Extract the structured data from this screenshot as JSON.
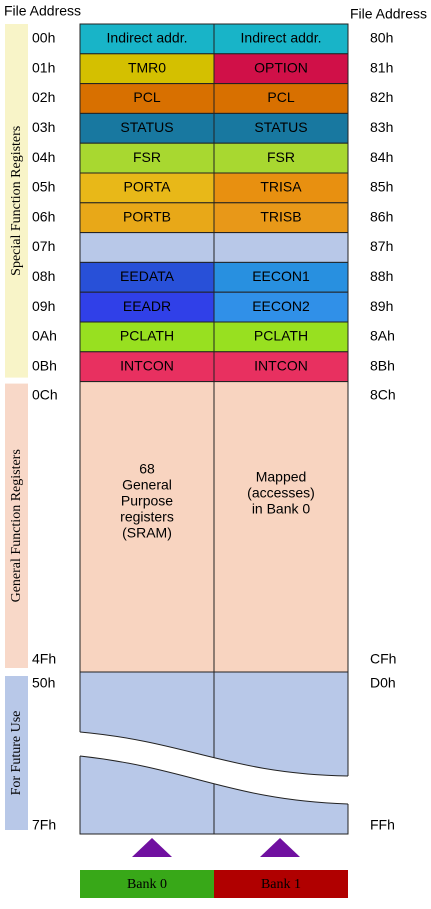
{
  "header": {
    "left": "File Address",
    "right": "File Address"
  },
  "side_labels": [
    {
      "text": "Special Function Registers",
      "color": "#f8f4c8"
    },
    {
      "text": "General Function Registers",
      "color": "#f8d8c8"
    },
    {
      "text": "For Future Use",
      "color": "#b8c8e8"
    }
  ],
  "sfr_rows": [
    {
      "addr0": "00h",
      "bank0": "Indirect addr.",
      "bank1": "Indirect addr.",
      "addr1": "80h",
      "color0": "#18b4c8",
      "color1": "#18b4c8"
    },
    {
      "addr0": "01h",
      "bank0": "TMR0",
      "bank1": "OPTION",
      "addr1": "81h",
      "color0": "#d4c000",
      "color1": "#d01048"
    },
    {
      "addr0": "02h",
      "bank0": "PCL",
      "bank1": "PCL",
      "addr1": "82h",
      "color0": "#d87000",
      "color1": "#d87000"
    },
    {
      "addr0": "03h",
      "bank0": "STATUS",
      "bank1": "STATUS",
      "addr1": "83h",
      "color0": "#1878a0",
      "color1": "#1878a0"
    },
    {
      "addr0": "04h",
      "bank0": "FSR",
      "bank1": "FSR",
      "addr1": "84h",
      "color0": "#a8d830",
      "color1": "#a8d830"
    },
    {
      "addr0": "05h",
      "bank0": "PORTA",
      "bank1": "TRISA",
      "addr1": "85h",
      "color0": "#e8b818",
      "color1": "#e89010"
    },
    {
      "addr0": "06h",
      "bank0": "PORTB",
      "bank1": "TRISB",
      "addr1": "86h",
      "color0": "#e8a818",
      "color1": "#e89818"
    },
    {
      "addr0": "07h",
      "addr1": "87h",
      "color0": "#b8c8e8",
      "color1": "#b8c8e8"
    },
    {
      "addr0": "08h",
      "bank0": "EEDATA",
      "bank1": "EECON1",
      "addr1": "88h",
      "color0": "#2850d8",
      "color1": "#2890e0"
    },
    {
      "addr0": "09h",
      "bank0": "EEADR",
      "bank1": "EECON2",
      "addr1": "89h",
      "color0": "#3040e8",
      "color1": "#3090e8"
    },
    {
      "addr0": "0Ah",
      "bank0": "PCLATH",
      "bank1": "PCLATH",
      "addr1": "8Ah",
      "color0": "#98e020",
      "color1": "#98e020"
    },
    {
      "addr0": "0Bh",
      "bank0": "INTCON",
      "bank1": "INTCON",
      "addr1": "8Bh",
      "color0": "#e83060",
      "color1": "#e83060"
    }
  ],
  "gpr": {
    "addr0_start": "0Ch",
    "addr0_end": "4Fh",
    "addr1_start": "8Ch",
    "addr1_end": "CFh",
    "bank0": [
      "68",
      "General",
      "Purpose",
      "registers",
      "(SRAM)"
    ],
    "bank1": [
      "Mapped",
      "(accesses)",
      "in Bank 0"
    ],
    "color": "#f8d4c0"
  },
  "future": {
    "addr0_start": "50h",
    "addr0_end": "7Fh",
    "addr1_start": "D0h",
    "addr1_end": "FFh",
    "color": "#b8c8e8"
  },
  "banks": [
    {
      "text": "Bank 0",
      "color": "#38a818"
    },
    {
      "text": "Bank 1",
      "color": "#b00000"
    }
  ]
}
